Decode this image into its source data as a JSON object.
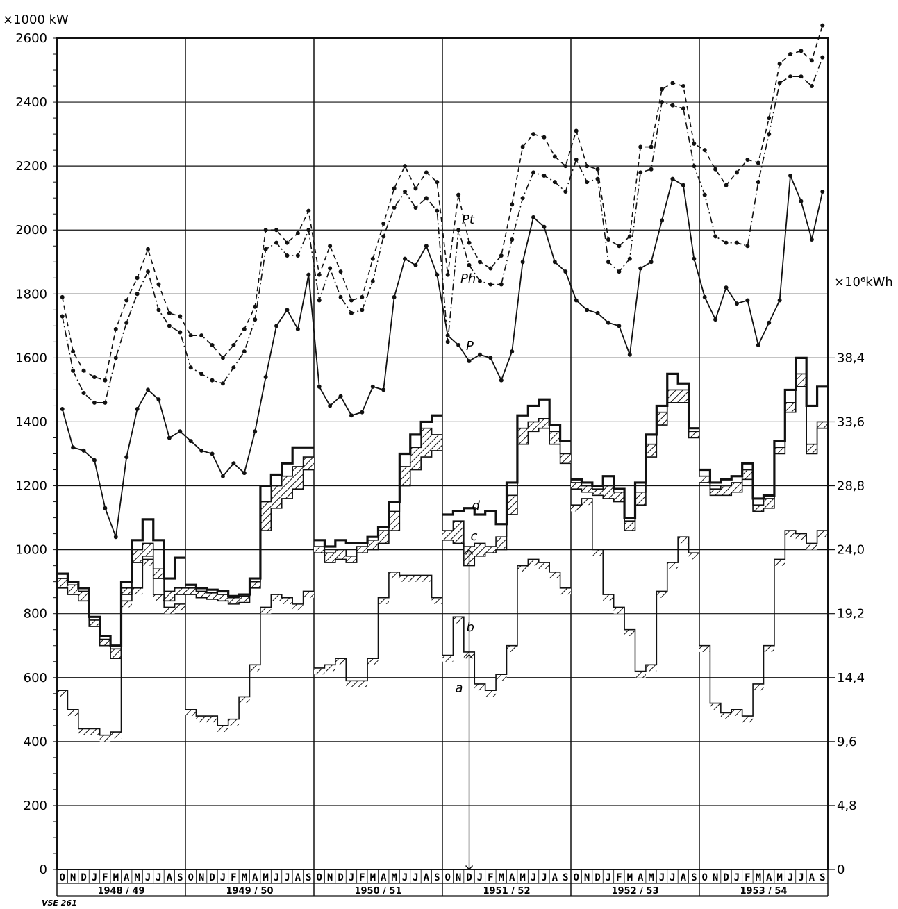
{
  "chart_data": {
    "type": "line",
    "ylabel_left": "×1000 kW",
    "ylabel_right": "×10⁶kWh",
    "ylim": [
      0,
      2600
    ],
    "yticks_left": [
      0,
      200,
      400,
      600,
      800,
      1000,
      1200,
      1400,
      1600,
      1800,
      2000,
      2200,
      2400,
      2600
    ],
    "yticks_right": [
      {
        "label": "0",
        "at": 0
      },
      {
        "label": "4,8",
        "at": 200
      },
      {
        "label": "9,6",
        "at": 400
      },
      {
        "label": "14,4",
        "at": 600
      },
      {
        "label": "19,2",
        "at": 800
      },
      {
        "label": "24,0",
        "at": 1000
      },
      {
        "label": "28,8",
        "at": 1200
      },
      {
        "label": "33,6",
        "at": 1400
      },
      {
        "label": "38,4",
        "at": 1600
      }
    ],
    "month_labels": [
      "O",
      "N",
      "D",
      "J",
      "F",
      "M",
      "A",
      "M",
      "J",
      "J",
      "A",
      "S"
    ],
    "years": [
      "1948 / 49",
      "1949 / 50",
      "1950 / 51",
      "1951 / 52",
      "1952 / 53",
      "1953 / 54"
    ],
    "grid": true,
    "series": [
      {
        "name": "Pt",
        "style": "dashed",
        "values": [
          1790,
          1620,
          1560,
          1540,
          1530,
          1690,
          1780,
          1850,
          1940,
          1830,
          1740,
          1730,
          1670,
          1670,
          1640,
          1600,
          1640,
          1690,
          1760,
          2000,
          2000,
          1960,
          1990,
          2060,
          1860,
          1950,
          1870,
          1780,
          1790,
          1910,
          2020,
          2130,
          2200,
          2130,
          2180,
          2150,
          1860,
          2110,
          1960,
          1900,
          1880,
          1920,
          2080,
          2260,
          2300,
          2290,
          2230,
          2200,
          2310,
          2200,
          2190,
          1970,
          1950,
          1980,
          2260,
          2260,
          2440,
          2460,
          2450,
          2270,
          2250,
          2190,
          2140,
          2180,
          2220,
          2210,
          2350,
          2520,
          2550,
          2560,
          2530,
          2640
        ]
      },
      {
        "name": "Ph",
        "style": "dashdot",
        "values": [
          1730,
          1560,
          1490,
          1460,
          1460,
          1600,
          1710,
          1800,
          1870,
          1750,
          1700,
          1680,
          1570,
          1550,
          1530,
          1520,
          1570,
          1620,
          1720,
          1940,
          1960,
          1920,
          1920,
          2000,
          1780,
          1880,
          1790,
          1740,
          1750,
          1840,
          1980,
          2070,
          2120,
          2070,
          2100,
          2060,
          1650,
          2000,
          1890,
          1840,
          1830,
          1830,
          1970,
          2100,
          2180,
          2170,
          2150,
          2120,
          2220,
          2150,
          2160,
          1900,
          1870,
          1910,
          2180,
          2190,
          2400,
          2390,
          2380,
          2200,
          2110,
          1980,
          1960,
          1960,
          1950,
          2150,
          2300,
          2460,
          2480,
          2480,
          2450,
          2540
        ]
      },
      {
        "name": "P",
        "style": "solid",
        "values": [
          1440,
          1320,
          1310,
          1280,
          1130,
          1040,
          1290,
          1440,
          1500,
          1470,
          1350,
          1370,
          1340,
          1310,
          1300,
          1230,
          1270,
          1240,
          1370,
          1540,
          1700,
          1750,
          1690,
          1860,
          1510,
          1450,
          1480,
          1420,
          1430,
          1510,
          1500,
          1790,
          1910,
          1890,
          1950,
          1860,
          1670,
          1640,
          1590,
          1610,
          1600,
          1530,
          1620,
          1900,
          2040,
          2010,
          1900,
          1870,
          1780,
          1750,
          1740,
          1710,
          1700,
          1610,
          1880,
          1900,
          2030,
          2160,
          2140,
          1910,
          1790,
          1720,
          1820,
          1770,
          1780,
          1640,
          1710,
          1780,
          2170,
          2090,
          1970,
          2120
        ]
      },
      {
        "name": "d",
        "style": "step",
        "values": [
          925,
          900,
          880,
          790,
          730,
          700,
          900,
          1030,
          1095,
          1030,
          910,
          975,
          890,
          880,
          875,
          870,
          855,
          860,
          910,
          1200,
          1235,
          1270,
          1320,
          1320,
          1030,
          1010,
          1030,
          1020,
          1020,
          1040,
          1070,
          1150,
          1300,
          1360,
          1400,
          1420,
          1110,
          1120,
          1130,
          1110,
          1120,
          1080,
          1210,
          1420,
          1450,
          1470,
          1390,
          1340,
          1220,
          1210,
          1200,
          1230,
          1190,
          1100,
          1210,
          1360,
          1450,
          1550,
          1520,
          1380,
          1250,
          1210,
          1220,
          1230,
          1270,
          1160,
          1170,
          1340,
          1500,
          1600,
          1450,
          1510
        ]
      },
      {
        "name": "c",
        "style": "step",
        "values": [
          910,
          890,
          870,
          780,
          720,
          690,
          880,
          1000,
          1020,
          940,
          870,
          880,
          880,
          870,
          865,
          860,
          850,
          855,
          900,
          1150,
          1200,
          1230,
          1260,
          1290,
          1010,
          990,
          1000,
          980,
          1010,
          1030,
          1060,
          1120,
          1260,
          1320,
          1380,
          1360,
          1060,
          1090,
          1010,
          1020,
          1010,
          1040,
          1170,
          1380,
          1400,
          1410,
          1370,
          1300,
          1210,
          1200,
          1190,
          1200,
          1180,
          1090,
          1180,
          1330,
          1430,
          1500,
          1500,
          1370,
          1230,
          1190,
          1200,
          1210,
          1250,
          1140,
          1160,
          1320,
          1460,
          1550,
          1330,
          1400
        ]
      },
      {
        "name": "b",
        "style": "step",
        "values": [
          880,
          860,
          840,
          760,
          700,
          660,
          860,
          960,
          980,
          910,
          840,
          860,
          860,
          850,
          845,
          840,
          830,
          835,
          880,
          1060,
          1130,
          1160,
          1190,
          1250,
          990,
          960,
          970,
          960,
          990,
          1000,
          1020,
          1060,
          1200,
          1250,
          1290,
          1310,
          1030,
          1020,
          950,
          980,
          990,
          1000,
          1110,
          1330,
          1370,
          1380,
          1330,
          1270,
          1190,
          1180,
          1170,
          1160,
          1150,
          1060,
          1140,
          1290,
          1390,
          1460,
          1460,
          1350,
          1210,
          1170,
          1170,
          1180,
          1220,
          1120,
          1130,
          1300,
          1430,
          1510,
          1300,
          1380
        ]
      },
      {
        "name": "a",
        "style": "step",
        "values": [
          560,
          500,
          440,
          440,
          420,
          430,
          840,
          880,
          970,
          860,
          820,
          830,
          500,
          480,
          480,
          450,
          470,
          540,
          640,
          820,
          860,
          850,
          830,
          870,
          630,
          640,
          660,
          590,
          590,
          660,
          850,
          930,
          920,
          920,
          920,
          850,
          670,
          790,
          680,
          580,
          560,
          610,
          700,
          950,
          970,
          960,
          930,
          880,
          1140,
          1160,
          1000,
          860,
          820,
          750,
          620,
          640,
          870,
          960,
          1040,
          990,
          700,
          520,
          490,
          500,
          480,
          580,
          700,
          970,
          1060,
          1050,
          1020,
          1060
        ]
      }
    ],
    "annotations": [
      "a",
      "b",
      "c",
      "d",
      "Pt",
      "Ph",
      "P"
    ]
  },
  "credit": "VSE 261"
}
